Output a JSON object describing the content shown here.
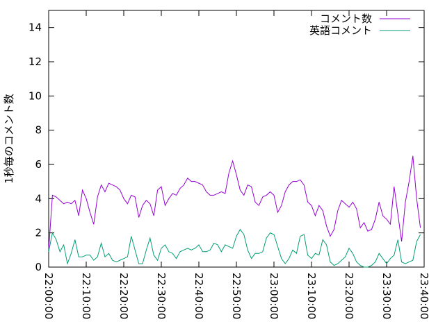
{
  "chart_data": {
    "type": "line",
    "ylabel": "1秒毎のコメント数",
    "x": [
      "22:00:00",
      "22:01:00",
      "22:02:00",
      "22:03:00",
      "22:04:00",
      "22:05:00",
      "22:06:00",
      "22:07:00",
      "22:08:00",
      "22:09:00",
      "22:10:00",
      "22:11:00",
      "22:12:00",
      "22:13:00",
      "22:14:00",
      "22:15:00",
      "22:16:00",
      "22:17:00",
      "22:18:00",
      "22:19:00",
      "22:20:00",
      "22:21:00",
      "22:22:00",
      "22:23:00",
      "22:24:00",
      "22:25:00",
      "22:26:00",
      "22:27:00",
      "22:28:00",
      "22:29:00",
      "22:30:00",
      "22:31:00",
      "22:32:00",
      "22:33:00",
      "22:34:00",
      "22:35:00",
      "22:36:00",
      "22:37:00",
      "22:38:00",
      "22:39:00",
      "22:40:00",
      "22:41:00",
      "22:42:00",
      "22:43:00",
      "22:44:00",
      "22:45:00",
      "22:46:00",
      "22:47:00",
      "22:48:00",
      "22:49:00",
      "22:50:00",
      "22:51:00",
      "22:52:00",
      "22:53:00",
      "22:54:00",
      "22:55:00",
      "22:56:00",
      "22:57:00",
      "22:58:00",
      "22:59:00",
      "23:00:00",
      "23:01:00",
      "23:02:00",
      "23:03:00",
      "23:04:00",
      "23:05:00",
      "23:06:00",
      "23:07:00",
      "23:08:00",
      "23:09:00",
      "23:10:00",
      "23:11:00",
      "23:12:00",
      "23:13:00",
      "23:14:00",
      "23:15:00",
      "23:16:00",
      "23:17:00",
      "23:18:00",
      "23:19:00",
      "23:20:00",
      "23:21:00",
      "23:22:00",
      "23:23:00",
      "23:24:00",
      "23:25:00",
      "23:26:00",
      "23:27:00",
      "23:28:00",
      "23:29:00",
      "23:30:00",
      "23:31:00",
      "23:32:00",
      "23:33:00",
      "23:34:00",
      "23:35:00",
      "23:36:00",
      "23:37:00",
      "23:38:00",
      "23:39:00"
    ],
    "series": [
      {
        "name": "コメント数",
        "color": "#9400d3",
        "values": [
          1.0,
          4.2,
          4.1,
          3.9,
          3.7,
          3.8,
          3.7,
          3.9,
          3.0,
          4.5,
          4.0,
          3.2,
          2.5,
          4.1,
          4.8,
          4.4,
          4.9,
          4.8,
          4.7,
          4.5,
          4.0,
          3.7,
          4.2,
          4.1,
          2.9,
          3.6,
          3.9,
          3.7,
          3.0,
          4.5,
          4.7,
          3.6,
          4.0,
          4.3,
          4.2,
          4.6,
          4.8,
          5.2,
          5.0,
          5.0,
          4.9,
          4.8,
          4.4,
          4.2,
          4.2,
          4.3,
          4.4,
          4.3,
          5.5,
          6.2,
          5.4,
          4.5,
          4.2,
          4.8,
          4.7,
          3.8,
          3.6,
          4.1,
          4.2,
          4.4,
          4.2,
          3.2,
          3.6,
          4.4,
          4.8,
          5.0,
          5.0,
          5.1,
          4.8,
          3.8,
          3.6,
          3.0,
          3.6,
          3.3,
          2.4,
          1.8,
          2.2,
          3.3,
          3.9,
          3.7,
          3.5,
          3.8,
          3.4,
          2.3,
          2.6,
          2.1,
          2.2,
          2.8,
          3.8,
          3.0,
          2.8,
          2.5,
          4.7,
          3.1,
          1.5,
          3.8,
          5.0,
          6.5,
          4.0,
          2.3
        ]
      },
      {
        "name": "英語コメント",
        "color": "#009e73",
        "values": [
          0.9,
          2.0,
          1.6,
          0.9,
          1.3,
          0.2,
          0.8,
          1.6,
          0.6,
          0.6,
          0.7,
          0.7,
          0.4,
          0.6,
          1.4,
          0.6,
          0.8,
          0.4,
          0.3,
          0.4,
          0.5,
          0.6,
          1.8,
          1.0,
          0.2,
          0.2,
          1.0,
          1.7,
          0.7,
          0.4,
          1.1,
          1.3,
          0.9,
          0.8,
          0.5,
          0.9,
          1.0,
          1.1,
          1.0,
          1.1,
          1.3,
          0.9,
          0.9,
          1.0,
          1.4,
          1.3,
          0.9,
          1.3,
          1.2,
          1.1,
          1.8,
          2.2,
          1.9,
          1.0,
          0.5,
          0.8,
          0.8,
          0.9,
          1.7,
          2.0,
          1.9,
          1.2,
          0.5,
          0.2,
          0.5,
          1.0,
          0.8,
          1.8,
          1.9,
          0.7,
          0.5,
          0.8,
          0.7,
          1.6,
          1.3,
          0.3,
          0.1,
          0.2,
          0.4,
          0.6,
          1.1,
          0.8,
          0.3,
          0.1,
          0.0,
          0.0,
          0.1,
          0.3,
          0.8,
          0.5,
          0.2,
          0.5,
          0.7,
          1.6,
          0.3,
          0.2,
          0.3,
          0.4,
          1.5,
          1.9
        ]
      }
    ],
    "xlim": [
      "22:00:00",
      "23:40:00"
    ],
    "xticks": [
      "22:00:00",
      "22:10:00",
      "22:20:00",
      "22:30:00",
      "22:40:00",
      "22:50:00",
      "23:00:00",
      "23:10:00",
      "23:20:00",
      "23:30:00",
      "23:40:00"
    ],
    "ylim": [
      0,
      15
    ],
    "yticks": [
      0,
      2,
      4,
      6,
      8,
      10,
      12,
      14
    ],
    "legend": "top-right"
  }
}
